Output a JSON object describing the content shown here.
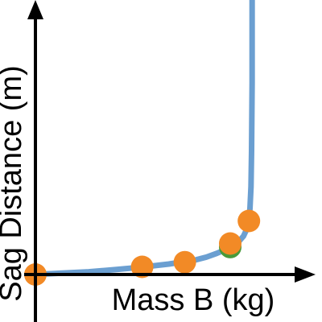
{
  "chart_data": {
    "type": "line",
    "title": "",
    "xlabel": "Mass B (kg)",
    "ylabel": "Sag Distance (m)",
    "xlim": [
      0,
      5.37
    ],
    "ylim": [
      0,
      1
    ],
    "grid": false,
    "legend": "none",
    "series": [
      {
        "kind": "curve",
        "color": "#6b9fd1",
        "x": [
          0,
          0.5,
          1.0,
          1.5,
          2.0,
          2.5,
          3.0,
          3.2,
          3.4,
          3.6,
          3.8,
          3.9,
          3.96,
          4.0,
          4.02,
          4.04,
          4.05,
          4.06,
          4.06
        ],
        "y": [
          0,
          0.005,
          0.01,
          0.018,
          0.027,
          0.038,
          0.053,
          0.063,
          0.077,
          0.094,
          0.118,
          0.14,
          0.165,
          0.2,
          0.24,
          0.32,
          0.45,
          0.7,
          1.25
        ]
      },
      {
        "kind": "points",
        "color": "#4a9a3a",
        "x": [
          3.65
        ],
        "y": [
          0.1
        ]
      },
      {
        "kind": "points",
        "color": "#f28a26",
        "x": [
          0,
          2.0,
          2.8,
          3.65,
          4.0
        ],
        "y": [
          0,
          0.028,
          0.045,
          0.113,
          0.195
        ]
      }
    ]
  }
}
